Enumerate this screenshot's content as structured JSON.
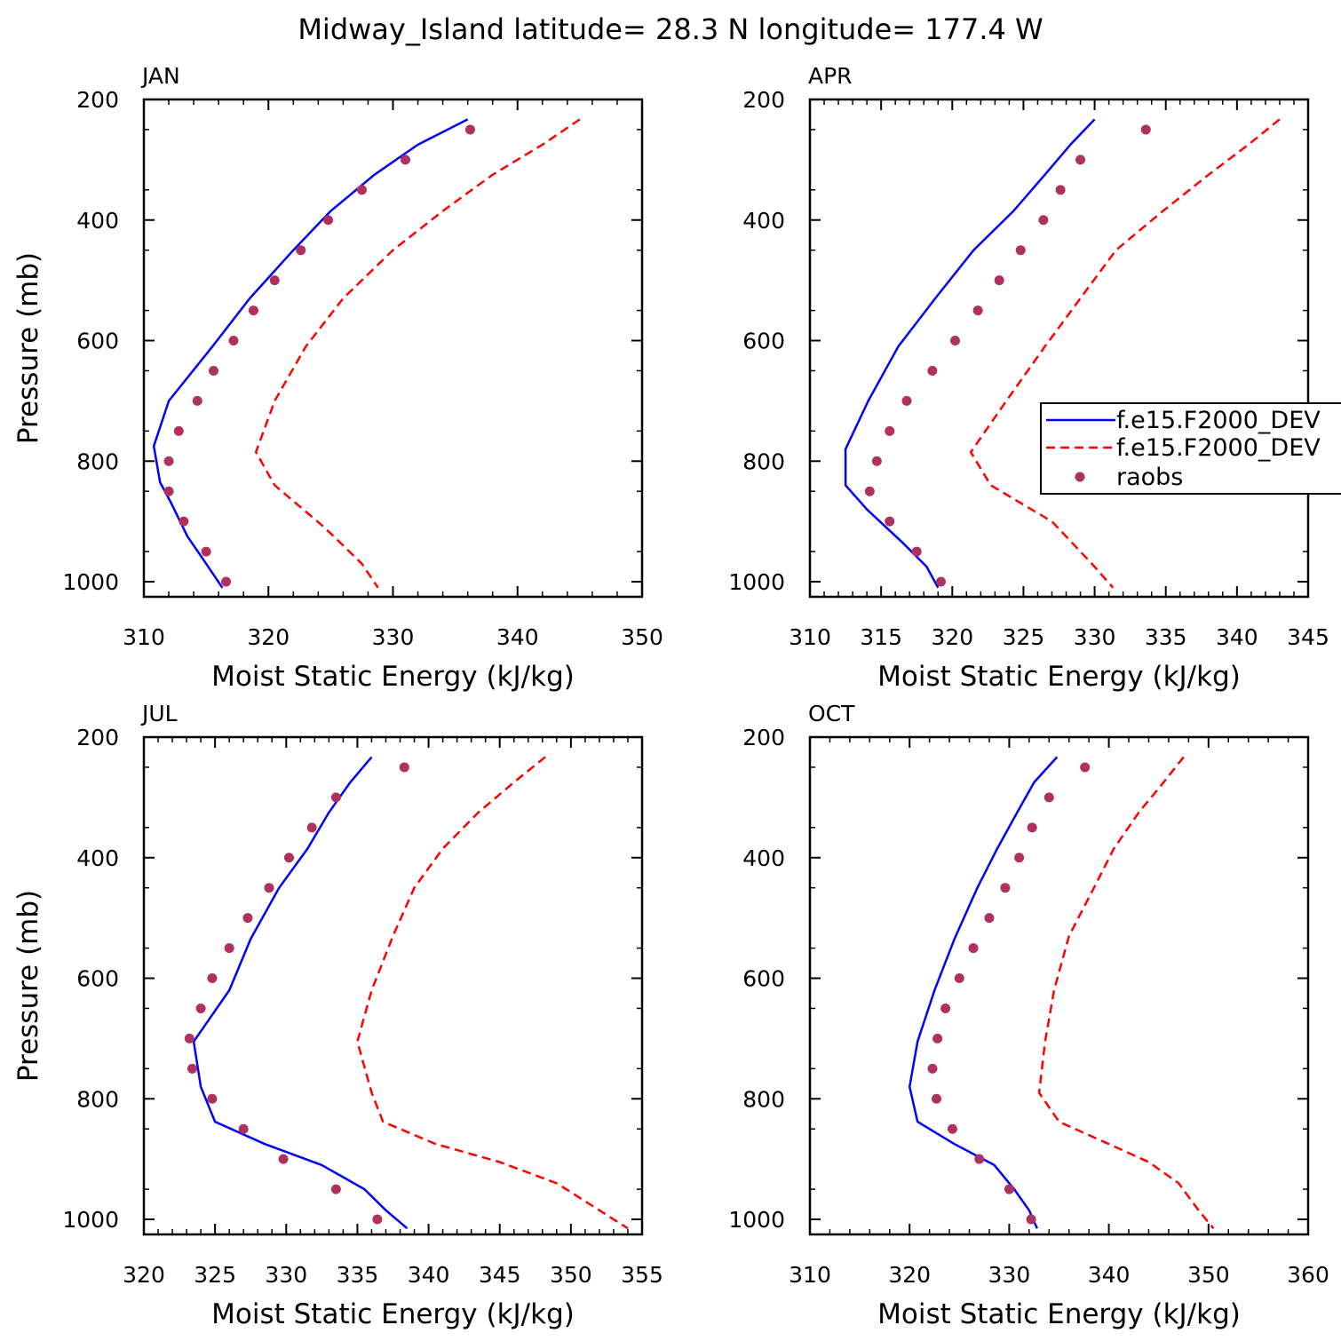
{
  "title": "Midway_Island  latitude= 28.3 N longitude= 177.4 W",
  "legend": {
    "entries": [
      {
        "label": "f.e15.F2000_DEV",
        "style": "solid",
        "color": "#0000ff"
      },
      {
        "label": "f.e15.F2000_DEV",
        "style": "dashed",
        "color": "#ff0000"
      },
      {
        "label": "raobs",
        "style": "marker",
        "color": "#b03060"
      }
    ]
  },
  "chart_data": [
    {
      "type": "line",
      "panel_label": "JAN",
      "xlabel": "Moist Static Energy (kJ/kg)",
      "ylabel": "Pressure (mb)",
      "xlim": [
        310,
        350
      ],
      "xticks": [
        310,
        320,
        330,
        340,
        350
      ],
      "ylim": [
        1025,
        200
      ],
      "yticks": [
        200,
        400,
        600,
        800,
        1000
      ],
      "series": [
        {
          "style": "solid",
          "color": "#0000ff",
          "x": [
            336.0,
            332.0,
            328.5,
            325.0,
            322.0,
            318.5,
            315.5,
            312.0,
            310.8,
            311.3,
            312.2,
            313.5,
            315.0,
            316.3
          ],
          "y": [
            233,
            275,
            325,
            385,
            450,
            530,
            610,
            700,
            775,
            835,
            870,
            925,
            970,
            1010
          ]
        },
        {
          "style": "dashed",
          "color": "#ff0000",
          "x": [
            345.0,
            342.0,
            338.0,
            334.0,
            330.0,
            326.0,
            323.0,
            320.5,
            319.0,
            320.5,
            324.5,
            327.5,
            328.8
          ],
          "y": [
            233,
            275,
            325,
            385,
            450,
            530,
            610,
            700,
            785,
            840,
            910,
            970,
            1010
          ]
        },
        {
          "style": "marker",
          "color": "#b03060",
          "x": [
            336.2,
            331.0,
            327.5,
            324.8,
            322.6,
            320.5,
            318.8,
            317.2,
            315.6,
            314.3,
            312.8,
            312.0,
            312.0,
            313.2,
            315.0,
            316.6
          ],
          "y": [
            250,
            300,
            350,
            400,
            450,
            500,
            550,
            600,
            650,
            700,
            750,
            800,
            850,
            900,
            950,
            1000
          ]
        }
      ]
    },
    {
      "type": "line",
      "panel_label": "APR",
      "xlabel": "Moist Static Energy (kJ/kg)",
      "ylabel": "",
      "xlim": [
        310,
        345
      ],
      "xticks": [
        310,
        315,
        320,
        325,
        330,
        335,
        340,
        345
      ],
      "ylim": [
        1025,
        200
      ],
      "yticks": [
        200,
        400,
        600,
        800,
        1000
      ],
      "series": [
        {
          "style": "solid",
          "color": "#0000ff",
          "x": [
            330.0,
            328.3,
            326.5,
            324.3,
            321.5,
            318.8,
            316.2,
            314.1,
            312.5,
            312.5,
            314.0,
            316.5,
            318.2,
            319.0
          ],
          "y": [
            233,
            275,
            325,
            385,
            450,
            530,
            610,
            700,
            780,
            840,
            880,
            935,
            975,
            1010
          ]
        },
        {
          "style": "dashed",
          "color": "#ff0000",
          "x": [
            343.0,
            340.8,
            338.0,
            334.8,
            331.5,
            329.0,
            326.5,
            323.8,
            321.3,
            322.7,
            327.0,
            329.8,
            331.3
          ],
          "y": [
            233,
            275,
            325,
            385,
            450,
            530,
            610,
            700,
            785,
            840,
            900,
            970,
            1010
          ]
        },
        {
          "style": "marker",
          "color": "#b03060",
          "x": [
            333.6,
            329.0,
            327.6,
            326.4,
            324.8,
            323.3,
            321.8,
            320.2,
            318.6,
            316.8,
            315.6,
            314.7,
            314.2,
            315.6,
            317.5,
            319.2
          ],
          "y": [
            250,
            300,
            350,
            400,
            450,
            500,
            550,
            600,
            650,
            700,
            750,
            800,
            850,
            900,
            950,
            1000
          ]
        }
      ]
    },
    {
      "type": "line",
      "panel_label": "JUL",
      "xlabel": "Moist Static Energy (kJ/kg)",
      "ylabel": "Pressure (mb)",
      "xlim": [
        320,
        355
      ],
      "xticks": [
        320,
        325,
        330,
        335,
        340,
        345,
        350,
        355
      ],
      "ylim": [
        1025,
        200
      ],
      "yticks": [
        200,
        400,
        600,
        800,
        1000
      ],
      "series": [
        {
          "style": "solid",
          "color": "#0000ff",
          "x": [
            336.0,
            334.5,
            333.0,
            331.5,
            329.5,
            327.5,
            326.0,
            323.5,
            324.0,
            325.0,
            328.5,
            332.5,
            335.5,
            337.0,
            338.5
          ],
          "y": [
            233,
            275,
            325,
            385,
            450,
            535,
            620,
            705,
            780,
            838,
            875,
            910,
            950,
            985,
            1015
          ]
        },
        {
          "style": "dashed",
          "color": "#ff0000",
          "x": [
            348.2,
            346.0,
            343.5,
            341.0,
            339.0,
            337.5,
            336.0,
            335.0,
            336.0,
            336.8,
            340.5,
            345.0,
            349.0,
            352.0,
            354.0
          ],
          "y": [
            233,
            275,
            325,
            385,
            450,
            530,
            620,
            705,
            790,
            838,
            875,
            905,
            940,
            985,
            1015
          ]
        },
        {
          "style": "marker",
          "color": "#b03060",
          "x": [
            338.3,
            333.5,
            331.8,
            330.2,
            328.8,
            327.3,
            326.0,
            324.8,
            324.0,
            323.2,
            323.4,
            324.8,
            327.0,
            329.8,
            333.5,
            336.4
          ],
          "y": [
            250,
            300,
            350,
            400,
            450,
            500,
            550,
            600,
            650,
            700,
            750,
            800,
            850,
            900,
            950,
            1000
          ]
        }
      ]
    },
    {
      "type": "line",
      "panel_label": "OCT",
      "xlabel": "Moist Static Energy (kJ/kg)",
      "ylabel": "",
      "xlim": [
        310,
        360
      ],
      "xticks": [
        310,
        320,
        330,
        340,
        350,
        360
      ],
      "ylim": [
        1025,
        200
      ],
      "yticks": [
        200,
        400,
        600,
        800,
        1000
      ],
      "series": [
        {
          "style": "solid",
          "color": "#0000ff",
          "x": [
            334.8,
            332.5,
            330.8,
            328.8,
            326.8,
            324.5,
            322.5,
            320.8,
            320.0,
            320.8,
            324.5,
            328.5,
            330.5,
            332.0,
            332.8
          ],
          "y": [
            233,
            275,
            325,
            385,
            450,
            535,
            620,
            705,
            780,
            838,
            875,
            910,
            950,
            985,
            1015
          ]
        },
        {
          "style": "dashed",
          "color": "#ff0000",
          "x": [
            347.5,
            345.5,
            343.0,
            340.5,
            338.5,
            336.0,
            334.5,
            333.6,
            333.0,
            335.0,
            340.0,
            344.0,
            347.0,
            349.0,
            350.5
          ],
          "y": [
            233,
            275,
            325,
            385,
            450,
            530,
            620,
            705,
            790,
            838,
            875,
            905,
            940,
            985,
            1015
          ]
        },
        {
          "style": "marker",
          "color": "#b03060",
          "x": [
            337.6,
            334.0,
            332.3,
            331.0,
            329.6,
            328.0,
            326.4,
            325.0,
            323.6,
            322.8,
            322.3,
            322.7,
            324.3,
            327.0,
            330.0,
            332.2
          ],
          "y": [
            250,
            300,
            350,
            400,
            450,
            500,
            550,
            600,
            650,
            700,
            750,
            800,
            850,
            900,
            950,
            1000
          ]
        }
      ]
    }
  ]
}
